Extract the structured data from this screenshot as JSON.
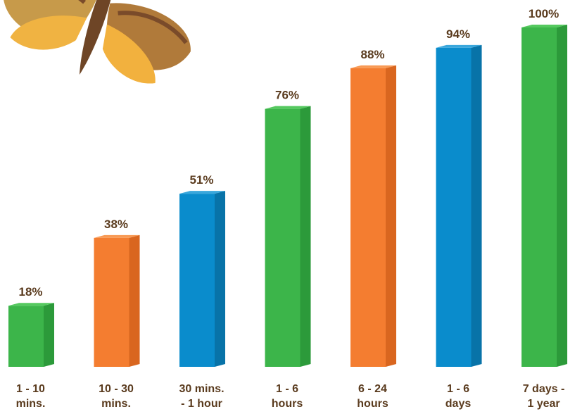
{
  "chart_data": {
    "type": "bar",
    "categories": [
      [
        "1 - 10",
        "mins."
      ],
      [
        "10 - 30",
        "mins."
      ],
      [
        "30 mins.",
        "- 1 hour"
      ],
      [
        "1 - 6",
        "hours"
      ],
      [
        "6 - 24",
        "hours"
      ],
      [
        "1 - 6",
        "days"
      ],
      [
        "7 days -",
        "1 year"
      ]
    ],
    "values": [
      18,
      38,
      51,
      76,
      88,
      94,
      100
    ],
    "value_labels": [
      "18%",
      "38%",
      "51%",
      "76%",
      "88%",
      "94%",
      "100%"
    ],
    "bar_colors": [
      "green",
      "orange",
      "blue",
      "green",
      "orange",
      "blue",
      "green"
    ],
    "ylim": [
      0,
      100
    ],
    "grid": false,
    "legend": "none"
  },
  "palette": {
    "green": {
      "front": "#3cb54a",
      "side": "#2c9a3a",
      "top": "#55c95f"
    },
    "orange": {
      "front": "#f47d30",
      "side": "#d9661f",
      "top": "#f89a55"
    },
    "blue": {
      "front": "#0a8ccc",
      "side": "#0873a8",
      "top": "#3aa7dc"
    },
    "label_color": "#5a3b1e"
  },
  "decoration": {
    "top_left_image": "moth-icon"
  }
}
